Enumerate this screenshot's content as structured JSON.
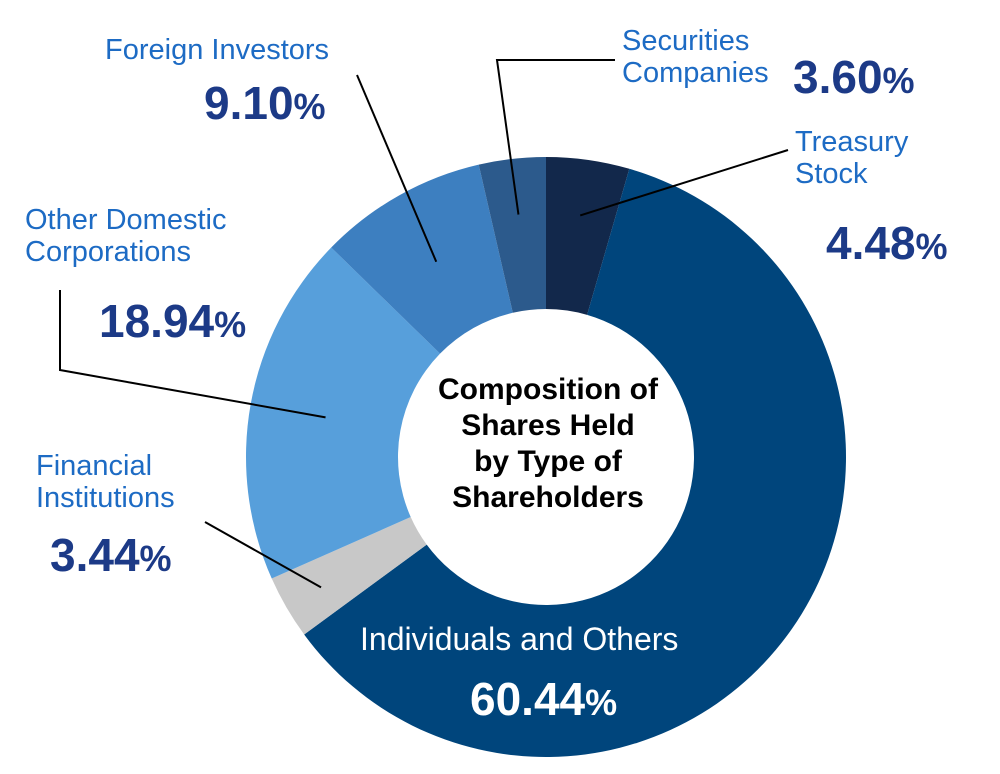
{
  "chart_data": {
    "type": "pie",
    "title": "Composition of Shares Held by Type of Shareholders",
    "title_lines": [
      "Composition of",
      "Shares Held",
      "by Type of",
      "Shareholders"
    ],
    "donut": true,
    "unit": "%",
    "slices": [
      {
        "key": "treasury",
        "label": "Treasury Stock",
        "label_lines": [
          "Treasury",
          "Stock"
        ],
        "value": 4.48,
        "display": "4.48",
        "color": "#12284b"
      },
      {
        "key": "individuals",
        "label": "Individuals and Others",
        "value": 60.44,
        "display": "60.44",
        "color": "#00457c"
      },
      {
        "key": "financial",
        "label": "Financial Institutions",
        "label_lines": [
          "Financial",
          "Institutions"
        ],
        "value": 3.44,
        "display": "3.44",
        "color": "#c8c8c8"
      },
      {
        "key": "domestic",
        "label": "Other Domestic Corporations",
        "label_lines": [
          "Other Domestic",
          "Corporations"
        ],
        "value": 18.94,
        "display": "18.94",
        "color": "#579fdb"
      },
      {
        "key": "foreign",
        "label": "Foreign Investors",
        "value": 9.1,
        "display": "9.10",
        "color": "#3d7fc0"
      },
      {
        "key": "securities",
        "label": "Securities Companies",
        "label_lines": [
          "Securities",
          "Companies"
        ],
        "value": 3.6,
        "display": "3.60",
        "color": "#2c5a8c"
      }
    ]
  }
}
